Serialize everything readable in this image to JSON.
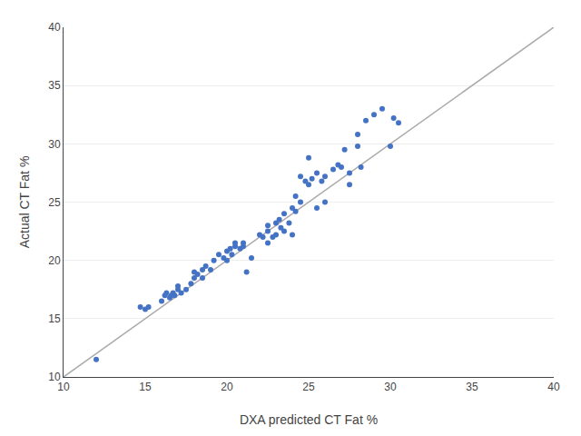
{
  "chart_data": {
    "type": "scatter",
    "xlabel": "DXA predicted CT Fat %",
    "ylabel": "Actual CT Fat %",
    "series": [
      {
        "type": "line",
        "color": "#AAAAAA",
        "x": [
          10,
          40
        ],
        "values": [
          10,
          40
        ]
      },
      {
        "type": "scatter",
        "color": "#4472C4",
        "x": [
          12.0,
          14.7,
          15.0,
          15.2,
          16.0,
          16.2,
          16.3,
          16.5,
          16.6,
          16.7,
          16.8,
          17.0,
          17.0,
          17.2,
          17.5,
          17.8,
          18.0,
          18.0,
          18.2,
          18.5,
          18.5,
          18.7,
          19.0,
          19.2,
          19.5,
          19.8,
          20.0,
          20.0,
          20.2,
          20.3,
          20.5,
          20.5,
          20.8,
          21.0,
          21.0,
          21.2,
          21.5,
          22.0,
          22.2,
          22.5,
          22.5,
          22.5,
          22.8,
          23.0,
          23.0,
          23.2,
          23.3,
          23.5,
          23.5,
          23.8,
          24.0,
          24.0,
          24.2,
          24.2,
          24.5,
          24.5,
          24.8,
          25.0,
          25.0,
          25.2,
          25.5,
          25.5,
          25.8,
          26.0,
          26.0,
          26.5,
          26.8,
          27.0,
          27.2,
          27.5,
          27.5,
          28.0,
          28.0,
          28.2,
          28.5,
          29.0,
          29.5,
          30.0,
          30.2,
          30.5
        ],
        "values": [
          11.5,
          16.0,
          15.8,
          16.0,
          16.5,
          17.0,
          17.2,
          16.8,
          17.0,
          17.2,
          17.0,
          17.5,
          17.8,
          17.2,
          17.5,
          18.0,
          18.5,
          19.0,
          18.8,
          19.2,
          18.5,
          19.5,
          19.2,
          20.0,
          20.5,
          20.2,
          20.0,
          20.8,
          21.0,
          20.5,
          21.2,
          21.5,
          21.0,
          21.5,
          21.2,
          19.0,
          20.2,
          22.2,
          22.0,
          22.5,
          23.0,
          21.5,
          22.0,
          23.2,
          22.2,
          23.5,
          22.8,
          24.0,
          22.5,
          23.2,
          24.5,
          22.2,
          25.5,
          24.2,
          25.0,
          27.2,
          26.8,
          26.5,
          28.8,
          27.0,
          27.5,
          24.5,
          26.8,
          27.2,
          25.0,
          27.8,
          28.2,
          28.0,
          29.5,
          27.5,
          26.5,
          30.8,
          29.8,
          28.0,
          32.0,
          32.5,
          33.0,
          29.8,
          32.2,
          31.8
        ]
      }
    ],
    "xlim": [
      10,
      40
    ],
    "ylim": [
      10,
      40
    ],
    "xticks": [
      10,
      15,
      20,
      25,
      30,
      35,
      40
    ],
    "yticks": [
      10,
      15,
      20,
      25,
      30,
      35,
      40
    ],
    "grid": true
  }
}
